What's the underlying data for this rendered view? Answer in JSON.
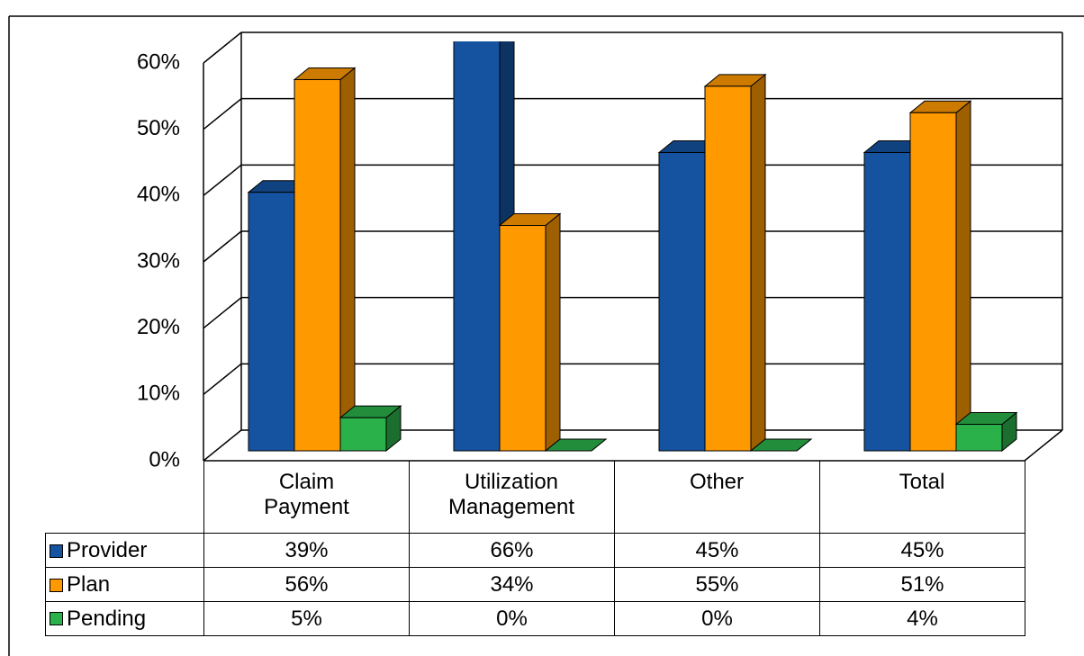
{
  "chart_data": {
    "type": "bar3d",
    "categories": [
      "Claim Payment",
      "Utilization Management",
      "Other",
      "Total"
    ],
    "series": [
      {
        "name": "Provider",
        "color": "#1553a0",
        "values": [
          39,
          66,
          45,
          45
        ],
        "value_labels": [
          "39%",
          "66%",
          "45%",
          "45%"
        ]
      },
      {
        "name": "Plan",
        "color": "#ff9900",
        "values": [
          56,
          34,
          55,
          51
        ],
        "value_labels": [
          "56%",
          "34%",
          "55%",
          "51%"
        ]
      },
      {
        "name": "Pending",
        "color": "#2bb14a",
        "values": [
          5,
          0,
          0,
          4
        ],
        "value_labels": [
          "5%",
          "0%",
          "0%",
          "4%"
        ]
      }
    ],
    "ylim": [
      0,
      60
    ],
    "yticks": [
      {
        "value": 0,
        "label": "0%"
      },
      {
        "value": 10,
        "label": "10%"
      },
      {
        "value": 20,
        "label": "20%"
      },
      {
        "value": 30,
        "label": "30%"
      },
      {
        "value": 40,
        "label": "40%"
      },
      {
        "value": 50,
        "label": "50%"
      },
      {
        "value": 60,
        "label": "60%"
      }
    ],
    "grid": true
  }
}
